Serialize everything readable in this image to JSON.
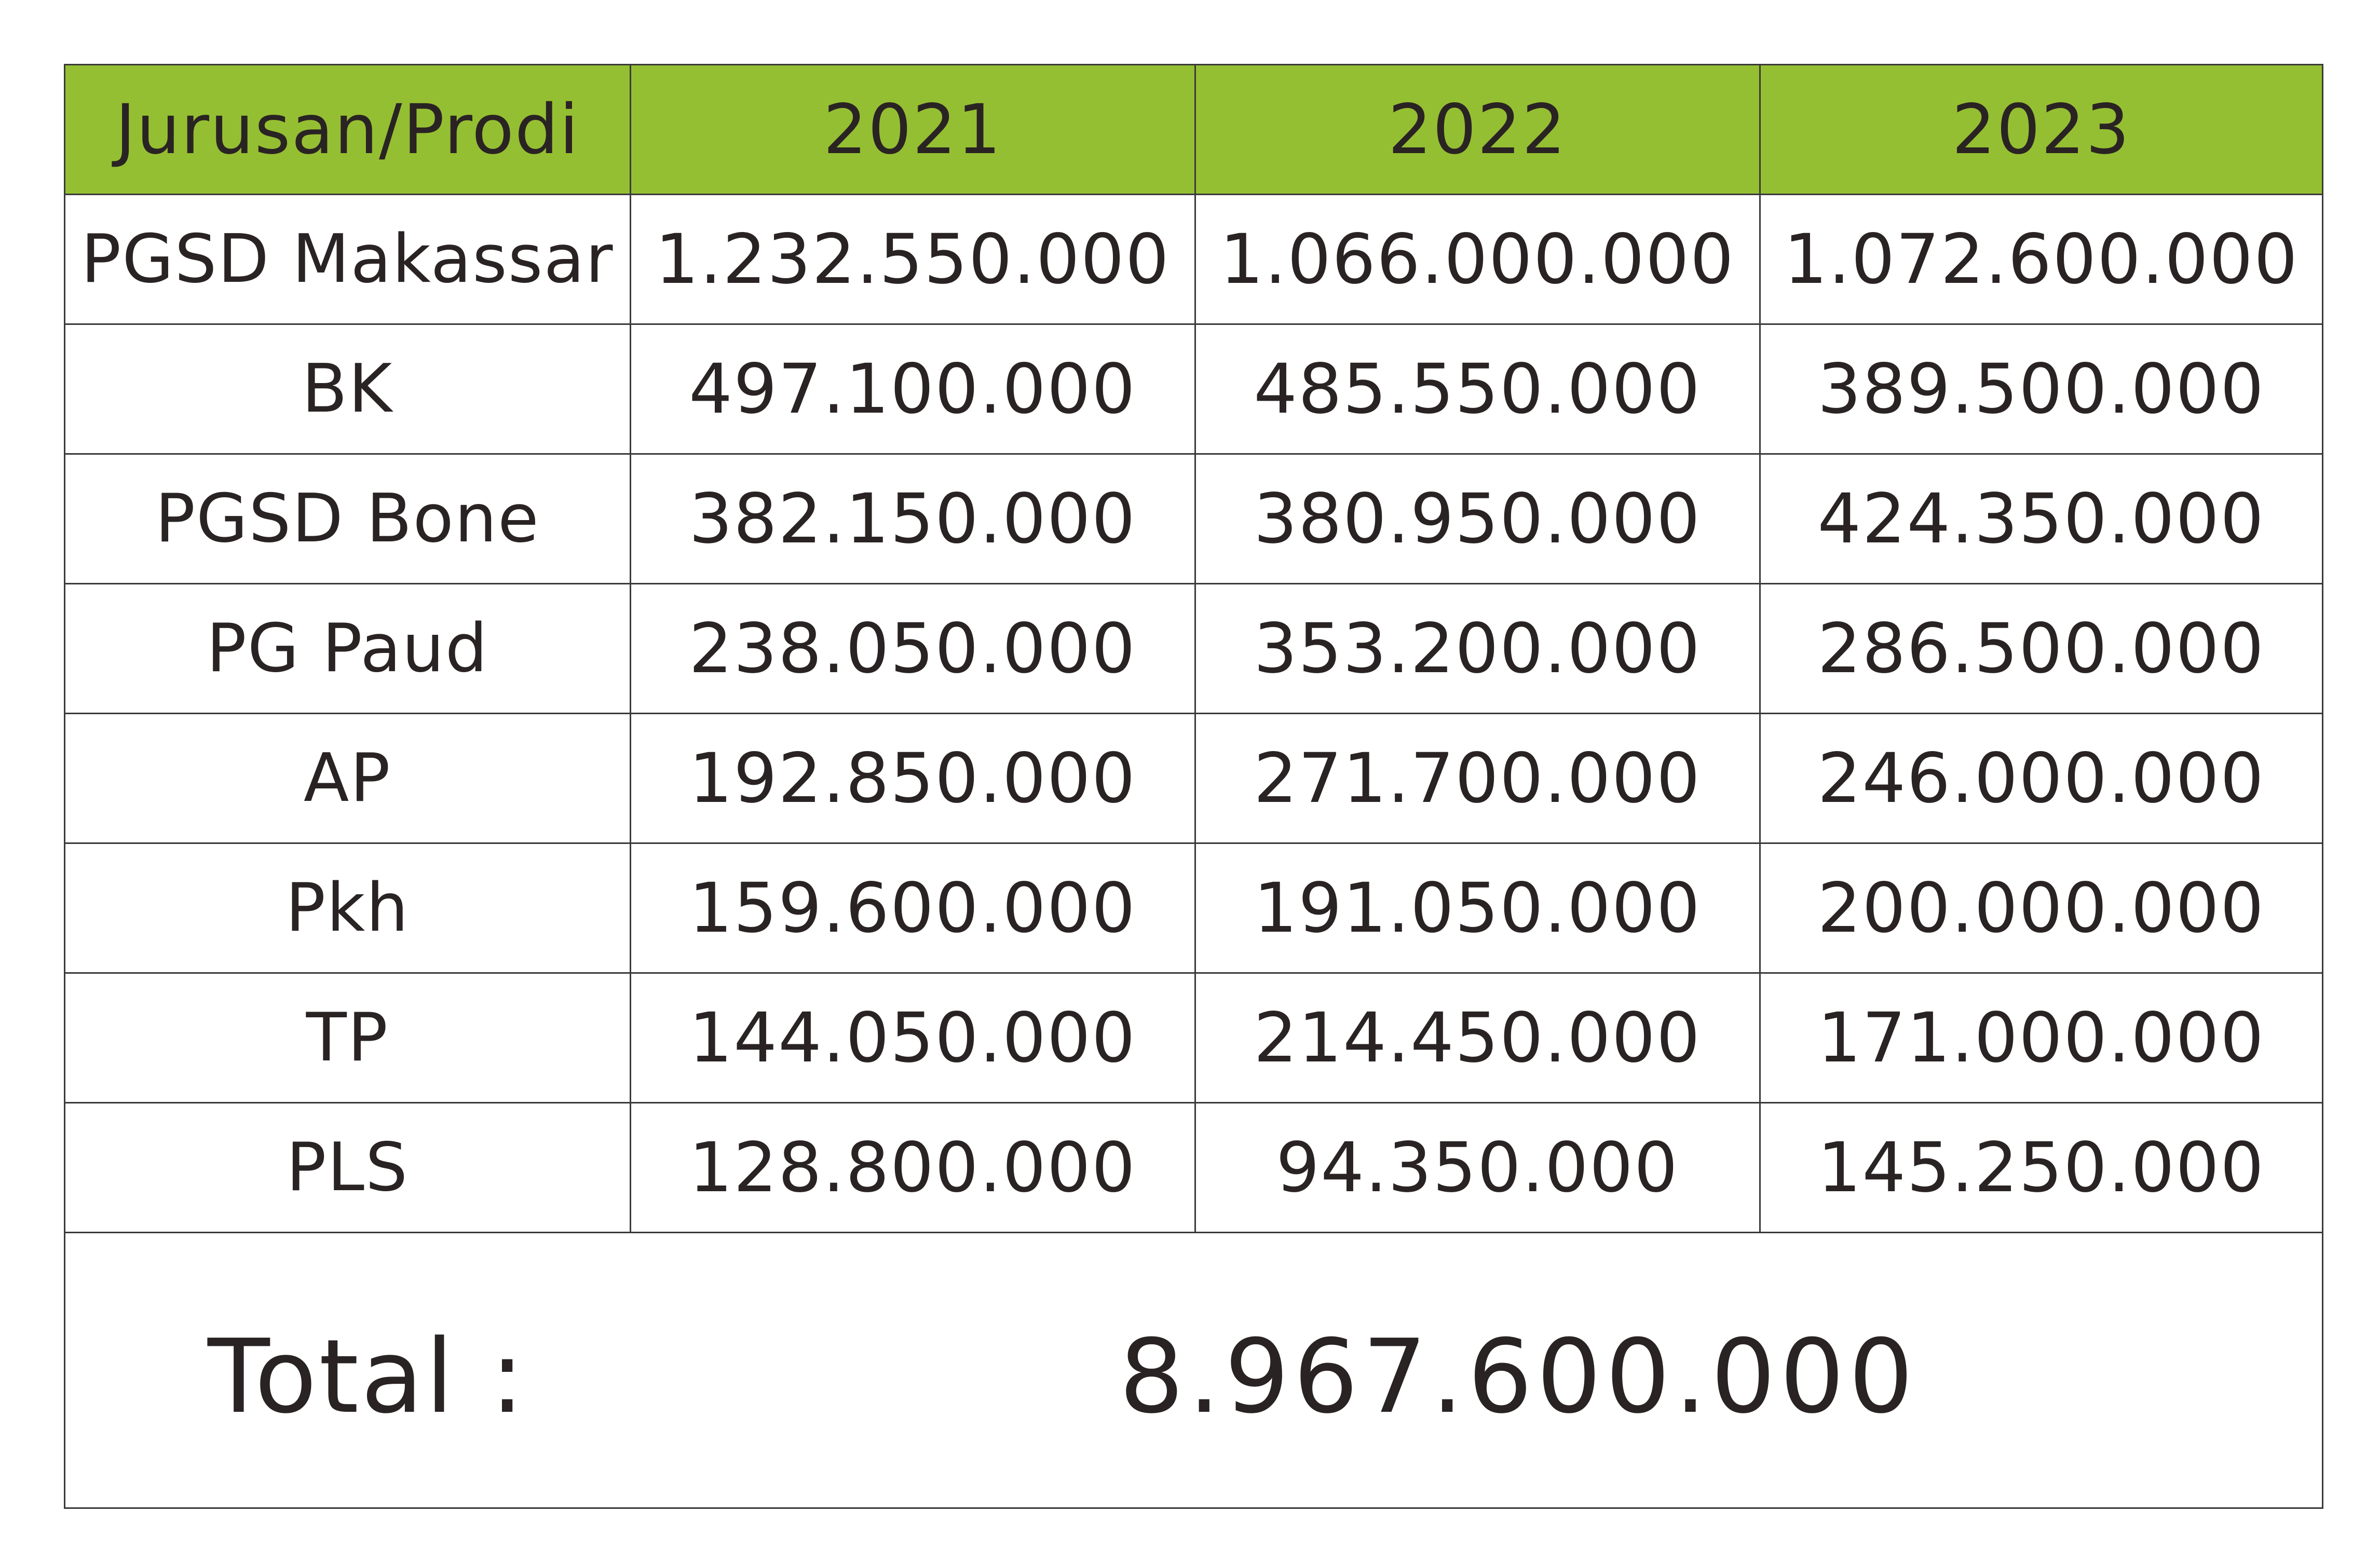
{
  "table": {
    "headers": [
      "Jurusan/Prodi",
      "2021",
      "2022",
      "2023"
    ],
    "rows": [
      {
        "prodi": "PGSD Makassar",
        "y2021": "1.232.550.000",
        "y2022": "1.066.000.000",
        "y2023": "1.072.600.000"
      },
      {
        "prodi": "BK",
        "y2021": "497.100.000",
        "y2022": "485.550.000",
        "y2023": "389.500.000"
      },
      {
        "prodi": "PGSD Bone",
        "y2021": "382.150.000",
        "y2022": "380.950.000",
        "y2023": "424.350.000"
      },
      {
        "prodi": "PG Paud",
        "y2021": "238.050.000",
        "y2022": "353.200.000",
        "y2023": "286.500.000"
      },
      {
        "prodi": "AP",
        "y2021": "192.850.000",
        "y2022": "271.700.000",
        "y2023": "246.000.000"
      },
      {
        "prodi": "Pkh",
        "y2021": "159.600.000",
        "y2022": "191.050.000",
        "y2023": "200.000.000"
      },
      {
        "prodi": "TP",
        "y2021": "144.050.000",
        "y2022": "214.450.000",
        "y2023": "171.000.000"
      },
      {
        "prodi": "PLS",
        "y2021": "128.800.000",
        "y2022": "94.350.000",
        "y2023": "145.250.000"
      }
    ]
  },
  "total": {
    "label": "Total :",
    "value": "8.967.600.000"
  },
  "colors": {
    "header_background": "#95bf32",
    "text": "#2a2323",
    "border": "#3a3a3a"
  }
}
